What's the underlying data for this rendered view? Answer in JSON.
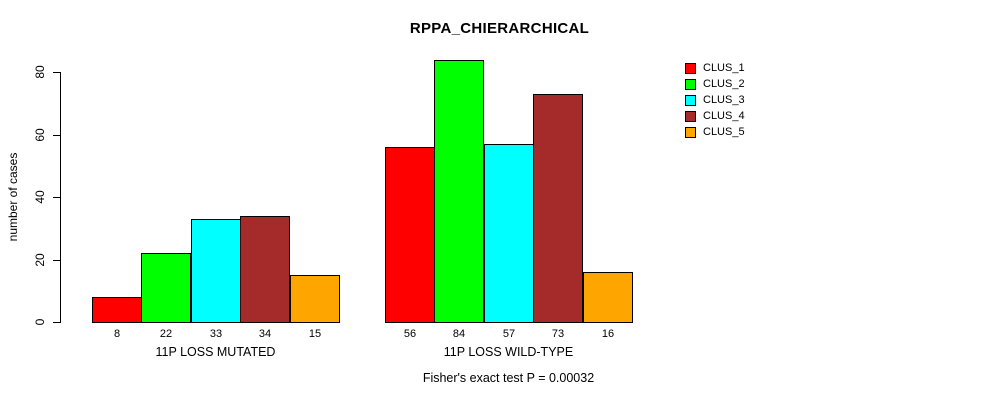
{
  "chart_data": {
    "type": "bar",
    "title": "RPPA_CHIERARCHICAL",
    "ylabel": "number of cases",
    "xlabel": "",
    "footnote": "Fisher's exact test P = 0.00032",
    "groups": [
      "11P LOSS MUTATED",
      "11P LOSS WILD-TYPE"
    ],
    "series": [
      {
        "name": "CLUS_1",
        "color": "#FF0000",
        "values": [
          8,
          56
        ]
      },
      {
        "name": "CLUS_2",
        "color": "#00FF00",
        "values": [
          22,
          84
        ]
      },
      {
        "name": "CLUS_3",
        "color": "#00FFFF",
        "values": [
          33,
          57
        ]
      },
      {
        "name": "CLUS_4",
        "color": "#A52A2A",
        "values": [
          34,
          73
        ]
      },
      {
        "name": "CLUS_5",
        "color": "#FFA500",
        "values": [
          15,
          16
        ]
      }
    ],
    "yticks": [
      0,
      20,
      40,
      60,
      80
    ],
    "ylim": [
      0,
      80
    ],
    "grid": false,
    "bar_borders": "#000000",
    "background": "#FFFFFF",
    "legend_position": "right",
    "value_labels_under_bars": true
  }
}
